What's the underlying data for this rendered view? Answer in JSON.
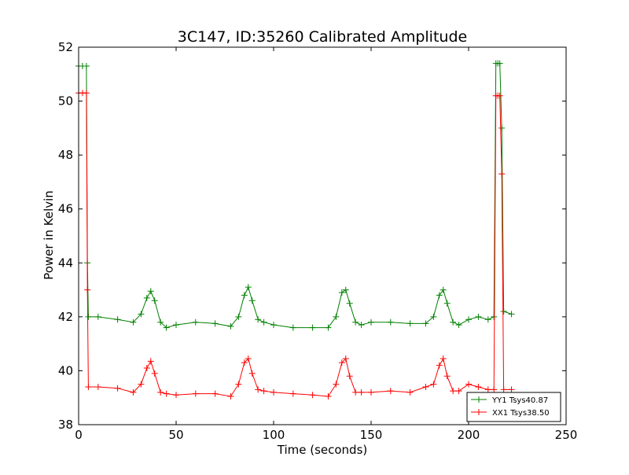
{
  "chart_data": {
    "type": "line",
    "title": "3C147, ID:35260 Calibrated Amplitude",
    "xlabel": "Time (seconds)",
    "ylabel": "Power in Kelvin",
    "xlim": [
      0,
      250
    ],
    "ylim": [
      38,
      52
    ],
    "xticks": [
      "0",
      "50",
      "100",
      "150",
      "200",
      "250"
    ],
    "yticks": [
      "38",
      "40",
      "42",
      "44",
      "46",
      "48",
      "50",
      "52"
    ],
    "grid": false,
    "legend_position": "lower-right",
    "marker": "+",
    "series": [
      {
        "name": "YY1 Tsys40.87",
        "color": "#008000",
        "x": [
          0,
          2,
          4,
          4.5,
          5,
          10,
          20,
          28,
          32,
          35,
          37,
          39,
          42,
          45,
          50,
          60,
          70,
          78,
          82,
          85,
          87,
          89,
          92,
          95,
          100,
          110,
          120,
          128,
          132,
          135,
          137,
          139,
          142,
          145,
          150,
          160,
          170,
          178,
          182,
          185,
          187,
          189,
          192,
          195,
          200,
          205,
          210,
          213,
          214,
          215,
          216,
          217,
          218,
          222
        ],
        "y": [
          51.3,
          51.3,
          51.3,
          44.0,
          42.0,
          42.0,
          41.9,
          41.8,
          42.1,
          42.7,
          42.95,
          42.6,
          41.8,
          41.6,
          41.7,
          41.8,
          41.75,
          41.65,
          42.0,
          42.8,
          43.1,
          42.6,
          41.9,
          41.8,
          41.7,
          41.6,
          41.6,
          41.6,
          42.0,
          42.9,
          43.0,
          42.5,
          41.8,
          41.7,
          41.8,
          41.8,
          41.75,
          41.75,
          42.0,
          42.8,
          43.0,
          42.5,
          41.8,
          41.7,
          41.9,
          42.0,
          41.9,
          42.0,
          51.4,
          51.4,
          51.4,
          49.0,
          42.2,
          42.1
        ]
      },
      {
        "name": "XX1 Tsys38.50",
        "color": "#ff0000",
        "x": [
          0,
          2,
          4,
          4.5,
          5,
          10,
          20,
          28,
          32,
          35,
          37,
          39,
          42,
          45,
          50,
          60,
          70,
          78,
          82,
          85,
          87,
          89,
          92,
          95,
          100,
          110,
          120,
          128,
          132,
          135,
          137,
          139,
          142,
          145,
          150,
          160,
          170,
          178,
          182,
          185,
          187,
          189,
          192,
          195,
          200,
          205,
          210,
          213,
          214,
          215,
          216,
          217,
          218,
          222
        ],
        "y": [
          50.3,
          50.3,
          50.3,
          43.0,
          39.4,
          39.4,
          39.35,
          39.2,
          39.5,
          40.1,
          40.35,
          39.9,
          39.2,
          39.15,
          39.1,
          39.15,
          39.15,
          39.05,
          39.5,
          40.3,
          40.45,
          39.9,
          39.3,
          39.25,
          39.2,
          39.15,
          39.1,
          39.05,
          39.5,
          40.3,
          40.45,
          39.8,
          39.2,
          39.2,
          39.2,
          39.25,
          39.2,
          39.4,
          39.5,
          40.2,
          40.45,
          39.8,
          39.25,
          39.25,
          39.5,
          39.4,
          39.3,
          39.3,
          50.2,
          50.2,
          50.2,
          47.3,
          39.3,
          39.3
        ]
      }
    ]
  }
}
